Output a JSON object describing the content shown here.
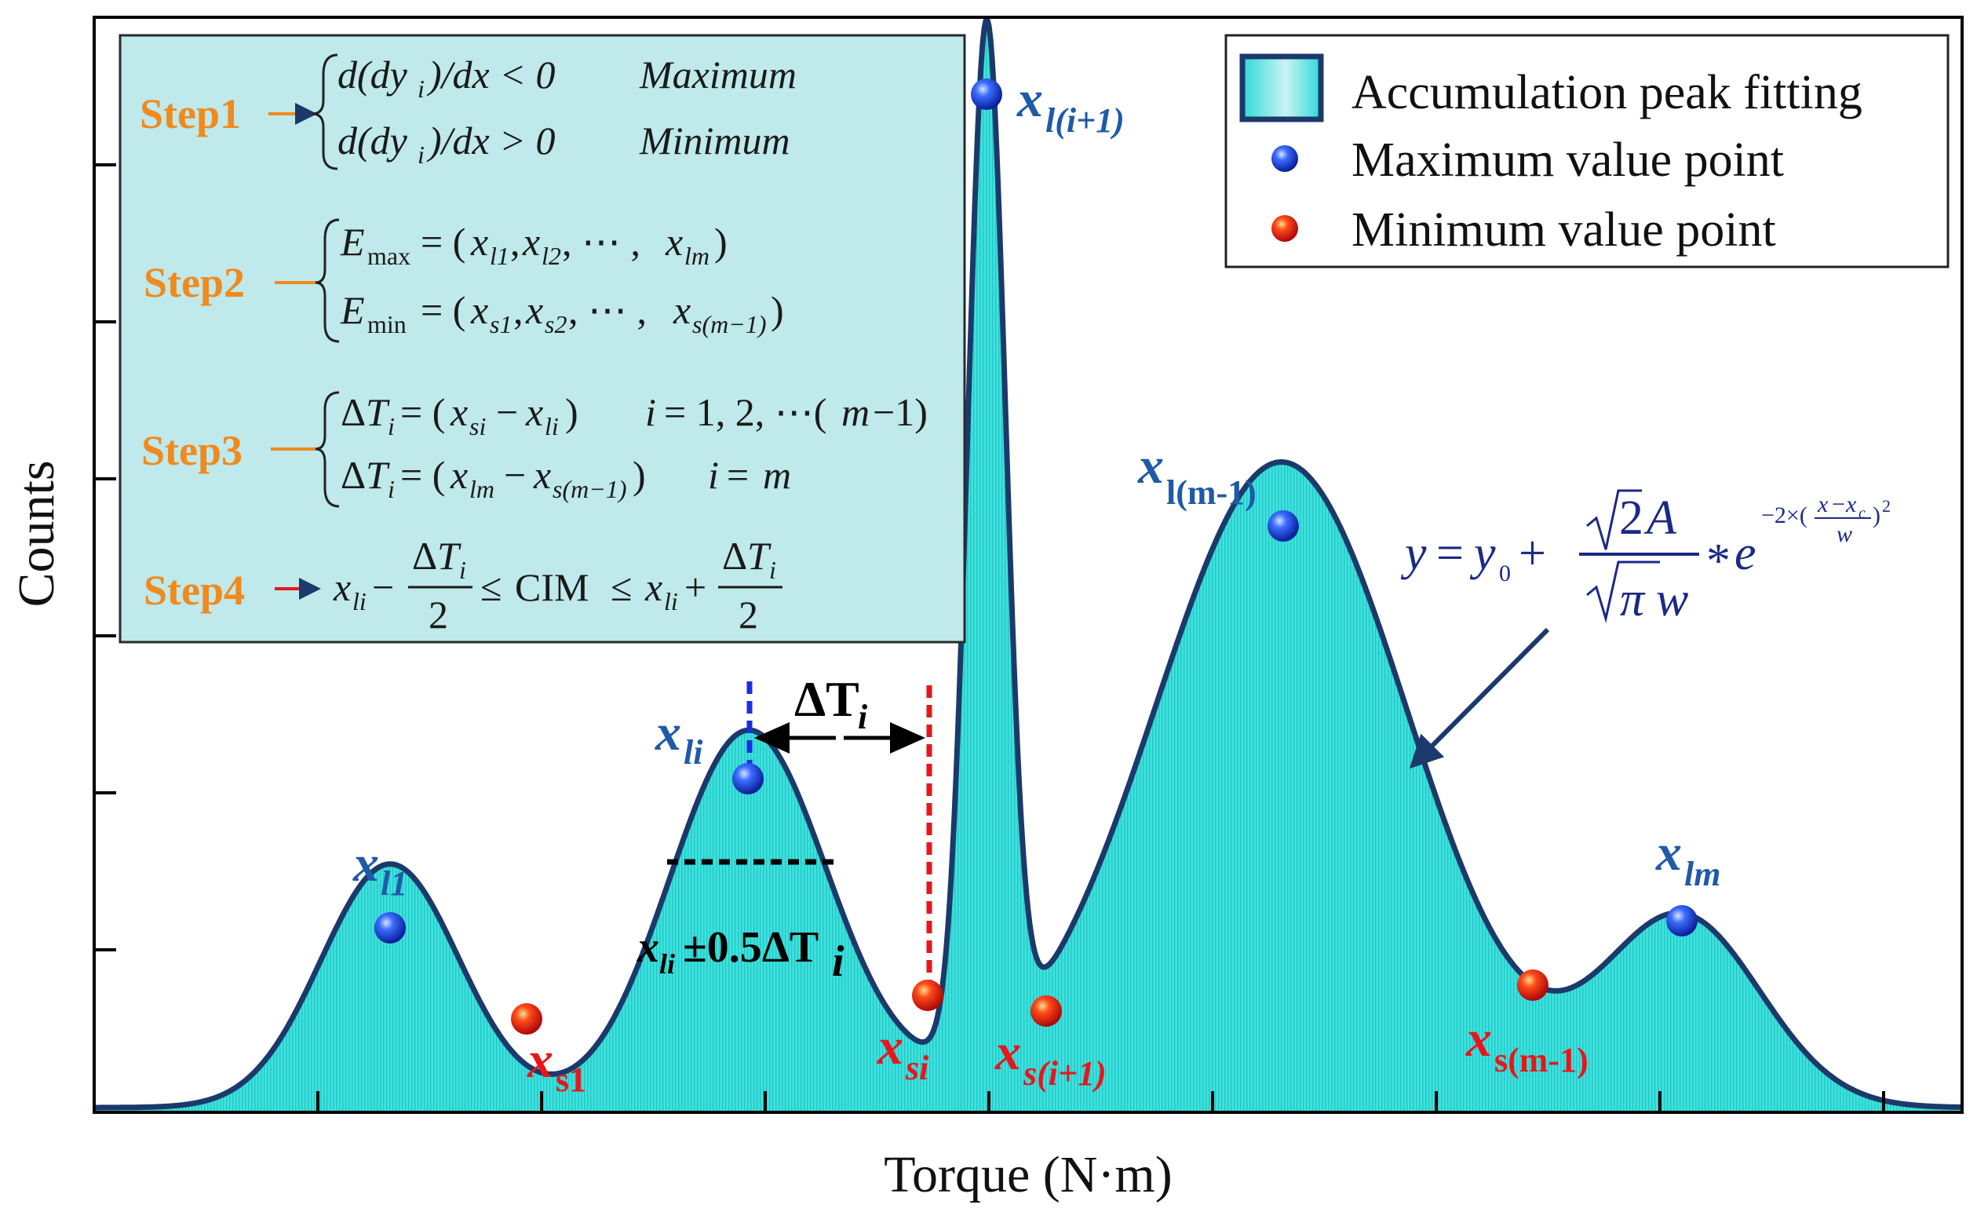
{
  "axes": {
    "xlabel": "Torque (N·m)",
    "ylabel": "Counts"
  },
  "legend": {
    "fit_label": "Accumulation peak fitting",
    "max_label": "Maximum value point",
    "min_label": "Minimum value point"
  },
  "steps": {
    "step1": "Step1",
    "step2": "Step2",
    "step3": "Step3",
    "step4": "Step4",
    "step1_max_tag": "Maximum",
    "step1_min_tag": "Minimum",
    "step4_cim": "CIM"
  },
  "points": {
    "maxima": [
      {
        "main": "x",
        "sub": "l1"
      },
      {
        "main": "x",
        "sub": "li"
      },
      {
        "main": "x",
        "sub": "l(i+1)"
      },
      {
        "main": "x",
        "sub": "l(m-1)"
      },
      {
        "main": "x",
        "sub": "lm"
      }
    ],
    "minima": [
      {
        "main": "x",
        "sub": "s1"
      },
      {
        "main": "x",
        "sub": "si"
      },
      {
        "main": "x",
        "sub": "s(i+1)"
      },
      {
        "main": "x",
        "sub": "s(m-1)"
      }
    ]
  },
  "annotations": {
    "delta_main": "ΔT",
    "delta_sub": "i",
    "half_main_x": "x",
    "half_main_sub": "li",
    "half_rest": "±0.5ΔT",
    "half_rest_sub": "i"
  },
  "colors": {
    "fill": "#33e0dc",
    "curve": "#1b3a6b",
    "box": "#bfe9ea",
    "maximum": "#1a3ee0",
    "minimum": "#e81010",
    "step": "#f08a1c"
  }
}
